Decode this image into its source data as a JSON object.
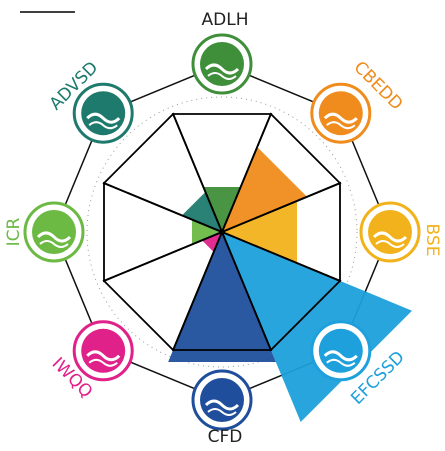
{
  "nodes": [
    {
      "label": "ADLH",
      "color": "#3f8f3a"
    },
    {
      "label": "CBEDD",
      "color": "#f08c1e"
    },
    {
      "label": "BSE",
      "color": "#f2b21c"
    },
    {
      "label": "EFCSSD",
      "color": "#1ea0dc"
    },
    {
      "label": "CFD",
      "color": "#1f4f9c"
    },
    {
      "label": "IWQQ",
      "color": "#e0218a"
    },
    {
      "label": "ICR",
      "color": "#6cb944"
    },
    {
      "label": "ADVSD",
      "color": "#1f7a6e"
    }
  ]
}
